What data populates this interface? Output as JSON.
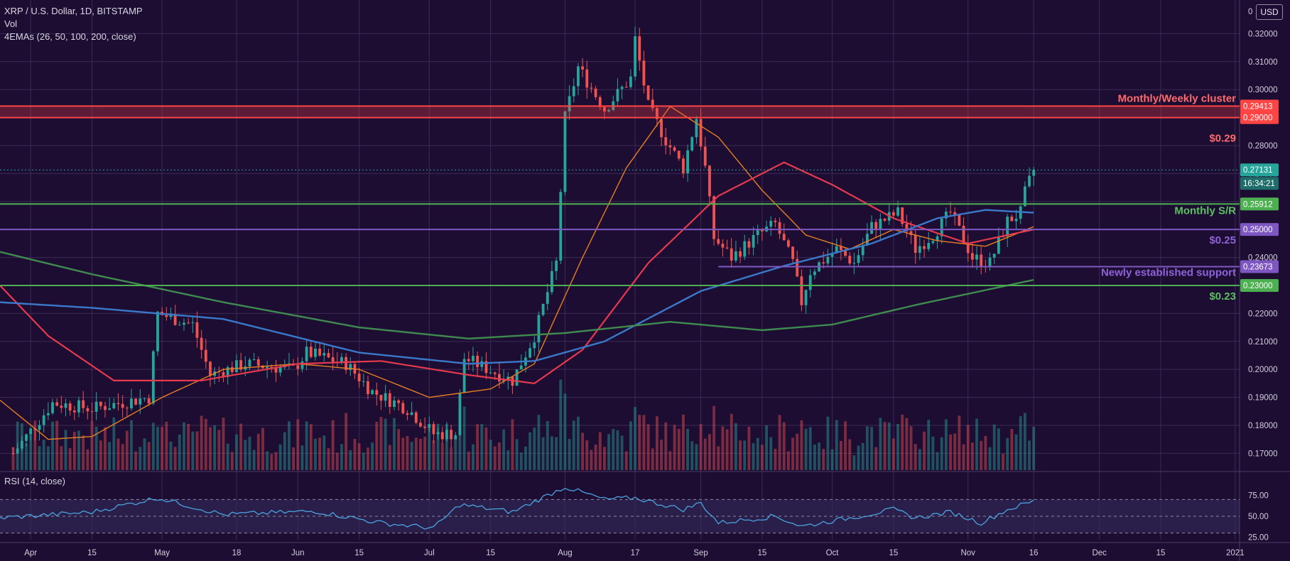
{
  "header": {
    "symbol_line": "XRP / U.S. Dollar, 1D, BITSTAMP",
    "volume_label": "Vol",
    "ema_label": "4EMAs (26, 50, 100, 200, close)",
    "rsi_label": "RSI (14, close)",
    "currency_button": "USD"
  },
  "colors": {
    "background": "#1e0d33",
    "grid": "#3a2a55",
    "up": "#26a69a",
    "down": "#ef5350",
    "ema26": "#e67e22",
    "ema50": "#e5394e",
    "ema100": "#3a78c9",
    "ema200": "#3f8a4f",
    "red_zone": "#ff4444",
    "green_line": "#4caf50",
    "purple_line": "#7e57c2",
    "rsi_line": "#4aa3df"
  },
  "chart_data": {
    "type": "candlestick",
    "title": "XRP / U.S. Dollar, 1D, BITSTAMP",
    "x_ticks": [
      "Apr",
      "15",
      "May",
      "18",
      "Jun",
      "15",
      "Jul",
      "15",
      "Aug",
      "17",
      "Sep",
      "15",
      "Oct",
      "15",
      "Nov",
      "16",
      "Dec",
      "15",
      "2021"
    ],
    "x_range": [
      "2020-03-25",
      "2021-01-02"
    ],
    "price_ticks": [
      "0.32000",
      "0.31000",
      "0.30000",
      "0.29000",
      "0.28000",
      "0.27000",
      "0.26000",
      "0.25000",
      "0.24000",
      "0.23000",
      "0.22000",
      "0.21000",
      "0.20000",
      "0.19000",
      "0.18000",
      "0.17000"
    ],
    "price_ylim": [
      0.164,
      0.33
    ],
    "price_tick_positions": [
      0.32,
      0.31,
      0.3,
      0.29,
      0.28,
      0.27,
      0.26,
      0.25,
      0.24,
      0.23,
      0.22,
      0.21,
      0.2,
      0.19,
      0.18,
      0.17
    ],
    "rsi_ticks": [
      "75.00",
      "50.00",
      "25.00"
    ],
    "rsi_tick_positions": [
      75,
      50,
      25
    ],
    "rsi_ylim": [
      22,
      100
    ],
    "rsi_band": [
      30,
      70
    ],
    "zero_label": "0",
    "price_anchors": [
      [
        "2020-03-28",
        0.17
      ],
      [
        "2020-04-06",
        0.188
      ],
      [
        "2020-04-15",
        0.186
      ],
      [
        "2020-04-28",
        0.19
      ],
      [
        "2020-04-30",
        0.22
      ],
      [
        "2020-05-08",
        0.216
      ],
      [
        "2020-05-12",
        0.198
      ],
      [
        "2020-05-20",
        0.202
      ],
      [
        "2020-05-31",
        0.2
      ],
      [
        "2020-06-03",
        0.206
      ],
      [
        "2020-06-12",
        0.202
      ],
      [
        "2020-06-18",
        0.192
      ],
      [
        "2020-06-26",
        0.186
      ],
      [
        "2020-07-02",
        0.177
      ],
      [
        "2020-07-07",
        0.177
      ],
      [
        "2020-07-09",
        0.204
      ],
      [
        "2020-07-20",
        0.196
      ],
      [
        "2020-07-25",
        0.212
      ],
      [
        "2020-07-30",
        0.238
      ],
      [
        "2020-08-01",
        0.29
      ],
      [
        "2020-08-04",
        0.308
      ],
      [
        "2020-08-10",
        0.293
      ],
      [
        "2020-08-16",
        0.304
      ],
      [
        "2020-08-17",
        0.318
      ],
      [
        "2020-08-20",
        0.294
      ],
      [
        "2020-08-24",
        0.282
      ],
      [
        "2020-08-28",
        0.272
      ],
      [
        "2020-08-31",
        0.29
      ],
      [
        "2020-09-02",
        0.272
      ],
      [
        "2020-09-04",
        0.247
      ],
      [
        "2020-09-08",
        0.24
      ],
      [
        "2020-09-14",
        0.248
      ],
      [
        "2020-09-18",
        0.252
      ],
      [
        "2020-09-22",
        0.238
      ],
      [
        "2020-09-24",
        0.224
      ],
      [
        "2020-09-26",
        0.235
      ],
      [
        "2020-10-02",
        0.243
      ],
      [
        "2020-10-06",
        0.238
      ],
      [
        "2020-10-10",
        0.251
      ],
      [
        "2020-10-16",
        0.256
      ],
      [
        "2020-10-20",
        0.243
      ],
      [
        "2020-10-24",
        0.248
      ],
      [
        "2020-10-28",
        0.256
      ],
      [
        "2020-11-02",
        0.24
      ],
      [
        "2020-11-06",
        0.238
      ],
      [
        "2020-11-10",
        0.253
      ],
      [
        "2020-11-13",
        0.256
      ],
      [
        "2020-11-14",
        0.263
      ],
      [
        "2020-11-16",
        0.2713
      ]
    ],
    "ema_anchors": {
      "ema26": [
        [
          "2020-03-25",
          0.189
        ],
        [
          "2020-04-05",
          0.175
        ],
        [
          "2020-04-15",
          0.176
        ],
        [
          "2020-05-01",
          0.19
        ],
        [
          "2020-05-15",
          0.2
        ],
        [
          "2020-06-01",
          0.202
        ],
        [
          "2020-06-15",
          0.2
        ],
        [
          "2020-07-01",
          0.19
        ],
        [
          "2020-07-15",
          0.193
        ],
        [
          "2020-07-25",
          0.202
        ],
        [
          "2020-08-05",
          0.24
        ],
        [
          "2020-08-15",
          0.272
        ],
        [
          "2020-08-25",
          0.294
        ],
        [
          "2020-09-05",
          0.283
        ],
        [
          "2020-09-15",
          0.264
        ],
        [
          "2020-09-25",
          0.248
        ],
        [
          "2020-10-05",
          0.243
        ],
        [
          "2020-10-15",
          0.25
        ],
        [
          "2020-10-25",
          0.246
        ],
        [
          "2020-11-05",
          0.244
        ],
        [
          "2020-11-16",
          0.251
        ]
      ],
      "ema50": [
        [
          "2020-03-25",
          0.23
        ],
        [
          "2020-04-05",
          0.212
        ],
        [
          "2020-04-20",
          0.196
        ],
        [
          "2020-05-10",
          0.196
        ],
        [
          "2020-06-01",
          0.202
        ],
        [
          "2020-06-20",
          0.203
        ],
        [
          "2020-07-10",
          0.198
        ],
        [
          "2020-07-25",
          0.195
        ],
        [
          "2020-08-05",
          0.207
        ],
        [
          "2020-08-20",
          0.238
        ],
        [
          "2020-09-05",
          0.262
        ],
        [
          "2020-09-20",
          0.274
        ],
        [
          "2020-10-01",
          0.266
        ],
        [
          "2020-10-15",
          0.254
        ],
        [
          "2020-11-01",
          0.245
        ],
        [
          "2020-11-16",
          0.25
        ]
      ],
      "ema100": [
        [
          "2020-03-25",
          0.224
        ],
        [
          "2020-04-15",
          0.222
        ],
        [
          "2020-05-15",
          0.218
        ],
        [
          "2020-06-15",
          0.206
        ],
        [
          "2020-07-10",
          0.202
        ],
        [
          "2020-07-25",
          0.203
        ],
        [
          "2020-08-10",
          0.21
        ],
        [
          "2020-09-01",
          0.228
        ],
        [
          "2020-09-20",
          0.237
        ],
        [
          "2020-10-10",
          0.245
        ],
        [
          "2020-10-25",
          0.254
        ],
        [
          "2020-11-05",
          0.257
        ],
        [
          "2020-11-16",
          0.256
        ]
      ],
      "ema200": [
        [
          "2020-03-25",
          0.242
        ],
        [
          "2020-04-15",
          0.234
        ],
        [
          "2020-05-15",
          0.224
        ],
        [
          "2020-06-15",
          0.215
        ],
        [
          "2020-07-10",
          0.211
        ],
        [
          "2020-08-01",
          0.213
        ],
        [
          "2020-08-25",
          0.217
        ],
        [
          "2020-09-15",
          0.214
        ],
        [
          "2020-10-01",
          0.216
        ],
        [
          "2020-10-20",
          0.223
        ],
        [
          "2020-11-16",
          0.232
        ]
      ]
    },
    "rsi_anchors": [
      [
        "2020-03-25",
        48
      ],
      [
        "2020-04-15",
        55
      ],
      [
        "2020-04-30",
        72
      ],
      [
        "2020-05-15",
        52
      ],
      [
        "2020-06-05",
        56
      ],
      [
        "2020-06-20",
        42
      ],
      [
        "2020-07-02",
        36
      ],
      [
        "2020-07-08",
        64
      ],
      [
        "2020-07-20",
        55
      ],
      [
        "2020-08-01",
        85
      ],
      [
        "2020-08-10",
        70
      ],
      [
        "2020-08-17",
        72
      ],
      [
        "2020-08-28",
        58
      ],
      [
        "2020-09-01",
        66
      ],
      [
        "2020-09-05",
        42
      ],
      [
        "2020-09-18",
        50
      ],
      [
        "2020-09-24",
        38
      ],
      [
        "2020-10-05",
        48
      ],
      [
        "2020-10-15",
        58
      ],
      [
        "2020-10-20",
        48
      ],
      [
        "2020-10-28",
        55
      ],
      [
        "2020-11-04",
        42
      ],
      [
        "2020-11-10",
        58
      ],
      [
        "2020-11-16",
        68
      ]
    ],
    "current_price": "0.27131",
    "countdown": "16:34:21",
    "annotations": [
      {
        "kind": "zone",
        "from": 0.29,
        "to": 0.29413,
        "color": "#ff4444",
        "label": "Monthly/Weekly cluster",
        "badge": "0.29413",
        "badge2": "0.29000",
        "note": "$0.29"
      },
      {
        "kind": "line",
        "value": 0.25912,
        "color": "#4caf50",
        "label": "Monthly S/R",
        "badge": "0.25912"
      },
      {
        "kind": "line",
        "value": 0.25,
        "color": "#7e57c2",
        "badge": "0.25000",
        "note": "$0.25"
      },
      {
        "kind": "line",
        "value": 0.23673,
        "color": "#7e57c2",
        "label": "Newly established support",
        "badge": "0.23673",
        "short": true
      },
      {
        "kind": "line",
        "value": 0.23,
        "color": "#4caf50",
        "badge": "0.23000",
        "note": "$0.23"
      }
    ]
  }
}
